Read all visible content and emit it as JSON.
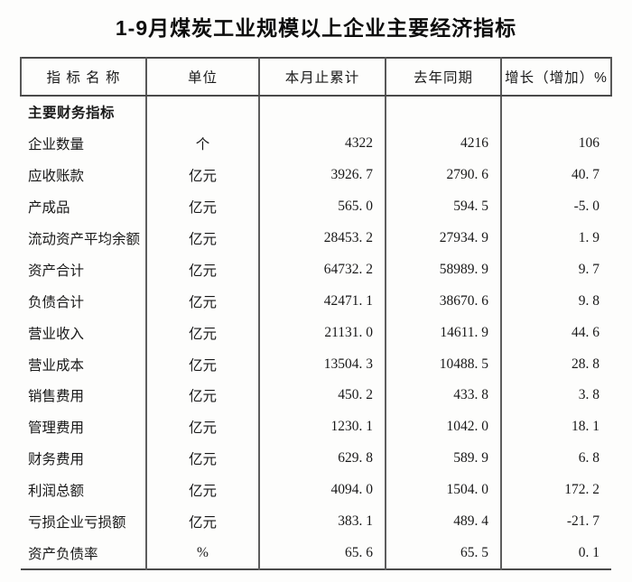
{
  "title": "1-9月煤炭工业规模以上企业主要经济指标",
  "table": {
    "headers": [
      "指 标 名 称",
      "单位",
      "本月止累计",
      "去年同期",
      "增长（增加）%"
    ],
    "rows": [
      {
        "type": "section",
        "name": "主要财务指标",
        "unit": "",
        "current": "",
        "last_year": "",
        "growth": ""
      },
      {
        "type": "data",
        "name": "企业数量",
        "unit": "个",
        "current": "4322",
        "last_year": "4216",
        "growth": "106"
      },
      {
        "type": "data",
        "name": "应收账款",
        "unit": "亿元",
        "current": "3926. 7",
        "last_year": "2790. 6",
        "growth": "40. 7"
      },
      {
        "type": "data",
        "name": "产成品",
        "unit": "亿元",
        "current": "565. 0",
        "last_year": "594. 5",
        "growth": "-5. 0"
      },
      {
        "type": "data",
        "name": "流动资产平均余额",
        "unit": "亿元",
        "current": "28453. 2",
        "last_year": "27934. 9",
        "growth": "1. 9"
      },
      {
        "type": "data",
        "name": "资产合计",
        "unit": "亿元",
        "current": "64732. 2",
        "last_year": "58989. 9",
        "growth": "9. 7"
      },
      {
        "type": "data",
        "name": "负债合计",
        "unit": "亿元",
        "current": "42471. 1",
        "last_year": "38670. 6",
        "growth": "9. 8"
      },
      {
        "type": "data",
        "name": "营业收入",
        "unit": "亿元",
        "current": "21131. 0",
        "last_year": "14611. 9",
        "growth": "44. 6"
      },
      {
        "type": "data",
        "name": "营业成本",
        "unit": "亿元",
        "current": "13504. 3",
        "last_year": "10488. 5",
        "growth": "28. 8"
      },
      {
        "type": "data",
        "name": "销售费用",
        "unit": "亿元",
        "current": "450. 2",
        "last_year": "433. 8",
        "growth": "3. 8"
      },
      {
        "type": "data",
        "name": "管理费用",
        "unit": "亿元",
        "current": "1230. 1",
        "last_year": "1042. 0",
        "growth": "18. 1"
      },
      {
        "type": "data",
        "name": "财务费用",
        "unit": "亿元",
        "current": "629. 8",
        "last_year": "589. 9",
        "growth": "6. 8"
      },
      {
        "type": "data",
        "name": "利润总额",
        "unit": "亿元",
        "current": "4094. 0",
        "last_year": "1504. 0",
        "growth": "172. 2"
      },
      {
        "type": "data",
        "name": "亏损企业亏损额",
        "unit": "亿元",
        "current": "383. 1",
        "last_year": "489. 4",
        "growth": "-21. 7"
      },
      {
        "type": "data",
        "name": "资产负债率",
        "unit": "%",
        "current": "65. 6",
        "last_year": "65. 5",
        "growth": "0. 1"
      }
    ]
  },
  "colors": {
    "background": "#fdfdfc",
    "text": "#151515",
    "border_heavy": "#4a4a4a",
    "border_light": "#5d5d5d"
  }
}
